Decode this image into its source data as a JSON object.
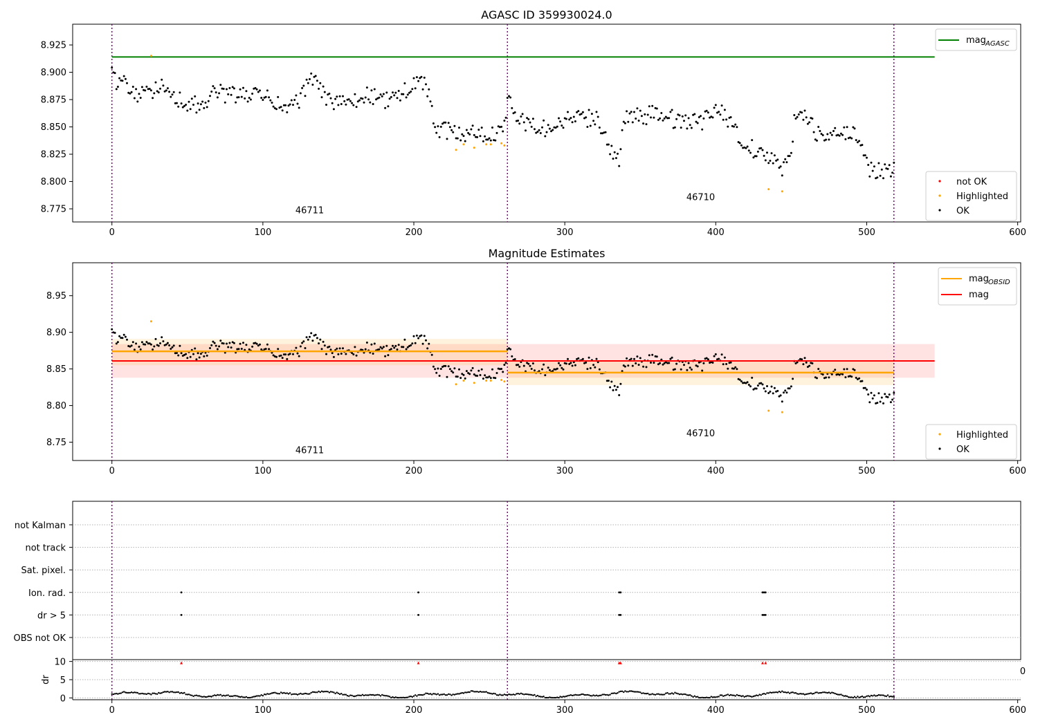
{
  "figure": {
    "panel1_title": "AGASC ID 359930024.0",
    "panel2_title": "Magnitude Estimates"
  },
  "chart_data": [
    {
      "type": "scatter",
      "title": "AGASC ID 359930024.0",
      "xlim": [
        -26,
        602
      ],
      "ylim": [
        8.763,
        8.944
      ],
      "xticks": [
        0,
        100,
        200,
        300,
        400,
        500,
        600
      ],
      "yticks": [
        8.775,
        8.8,
        8.825,
        8.85,
        8.875,
        8.9,
        8.925
      ],
      "ytick_labels": [
        "8.775",
        "8.800",
        "8.825",
        "8.850",
        "8.875",
        "8.900",
        "8.925"
      ],
      "obs_boundaries": [
        0,
        262,
        518
      ],
      "obs_labels": [
        {
          "text": "46711",
          "x": 131,
          "y": 8.771
        },
        {
          "text": "46710",
          "x": 390,
          "y": 8.783
        }
      ],
      "mag_agasc": {
        "value": 8.914,
        "x_range": [
          0,
          545
        ]
      },
      "legend_lines": [
        {
          "label": "mag",
          "sub": "AGASC",
          "color": "#008000"
        }
      ],
      "legend_points": [
        {
          "label": "not OK",
          "color": "#ff0000"
        },
        {
          "label": "Highlighted",
          "color": "#ffa500"
        },
        {
          "label": "OK",
          "color": "#000000"
        }
      ],
      "legend_placement": "top-right (lines), bottom-right (points)",
      "highlighted_points": [
        [
          26,
          8.915
        ],
        [
          228,
          8.829
        ],
        [
          233,
          8.834
        ],
        [
          240,
          8.831
        ],
        [
          248,
          8.834
        ],
        [
          251,
          8.834
        ],
        [
          258,
          8.835
        ],
        [
          260,
          8.833
        ],
        [
          435,
          8.793
        ],
        [
          444,
          8.791
        ]
      ],
      "not_ok_points": []
    },
    {
      "type": "scatter",
      "title": "Magnitude Estimates",
      "xlim": [
        -26,
        602
      ],
      "ylim": [
        8.725,
        8.995
      ],
      "xticks": [
        0,
        100,
        200,
        300,
        400,
        500,
        600
      ],
      "yticks": [
        8.75,
        8.8,
        8.85,
        8.9,
        8.95
      ],
      "ytick_labels": [
        "8.75",
        "8.80",
        "8.85",
        "8.90",
        "8.95"
      ],
      "obs_boundaries": [
        0,
        262,
        518
      ],
      "obs_labels": [
        {
          "text": "46711",
          "x": 131,
          "y": 8.735
        },
        {
          "text": "46710",
          "x": 390,
          "y": 8.758
        }
      ],
      "mag": {
        "value": 8.861,
        "band": [
          8.838,
          8.884
        ],
        "x_range": [
          0,
          545
        ],
        "color": "#ff0000"
      },
      "mag_obsid": [
        {
          "x_range": [
            0,
            262
          ],
          "value": 8.874,
          "band": [
            8.855,
            8.891
          ]
        },
        {
          "x_range": [
            262,
            518
          ],
          "value": 8.845,
          "band": [
            8.828,
            8.862
          ]
        }
      ],
      "legend_lines": [
        {
          "label": "mag",
          "sub": "OBSID",
          "color": "#ffa500"
        },
        {
          "label": "mag",
          "sub": "",
          "color": "#ff0000"
        }
      ],
      "legend_points": [
        {
          "label": "Highlighted",
          "color": "#ffa500"
        },
        {
          "label": "OK",
          "color": "#000000"
        }
      ],
      "highlighted_points": [
        [
          26,
          8.915
        ],
        [
          228,
          8.829
        ],
        [
          233,
          8.834
        ],
        [
          240,
          8.831
        ],
        [
          248,
          8.834
        ],
        [
          251,
          8.834
        ],
        [
          258,
          8.835
        ],
        [
          260,
          8.833
        ],
        [
          435,
          8.793
        ],
        [
          444,
          8.791
        ]
      ]
    },
    {
      "type": "scatter",
      "xlim": [
        -26,
        602
      ],
      "xticks": [
        0,
        100,
        200,
        300,
        400,
        500,
        600
      ],
      "flag_categories": [
        "not Kalman",
        "not track",
        "Sat. pixel.",
        "Ion. rad.",
        "dr > 5",
        "OBS not OK"
      ],
      "flag_points": {
        "Ion. rad.": [
          46,
          203,
          336,
          337,
          431,
          432,
          433
        ],
        "dr > 5": [
          46,
          203,
          336,
          337,
          431,
          432,
          433
        ]
      },
      "obs_boundaries": [
        0,
        262,
        518
      ],
      "dr_ylabel": "dr",
      "dr_yticks": [
        0,
        5,
        10
      ],
      "dr_ylim": [
        -0.5,
        10.5
      ],
      "dr_clipped_points_x": [
        46,
        203,
        336,
        337,
        431,
        433
      ],
      "dr_clip_value": 10,
      "dr_side_label": "0"
    }
  ]
}
